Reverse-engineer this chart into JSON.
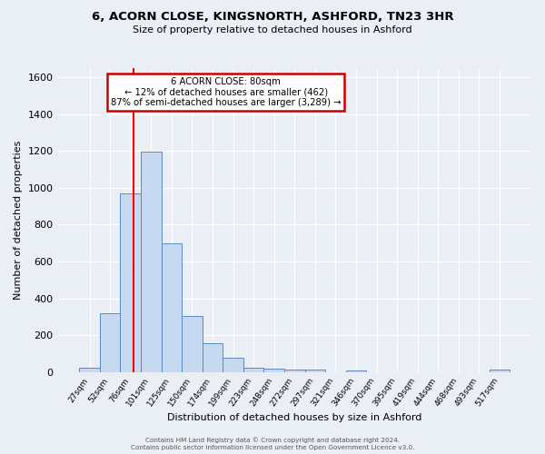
{
  "title_line1": "6, ACORN CLOSE, KINGSNORTH, ASHFORD, TN23 3HR",
  "title_line2": "Size of property relative to detached houses in Ashford",
  "xlabel": "Distribution of detached houses by size in Ashford",
  "ylabel": "Number of detached properties",
  "categories": [
    "27sqm",
    "52sqm",
    "76sqm",
    "101sqm",
    "125sqm",
    "150sqm",
    "174sqm",
    "199sqm",
    "223sqm",
    "248sqm",
    "272sqm",
    "297sqm",
    "321sqm",
    "346sqm",
    "370sqm",
    "395sqm",
    "419sqm",
    "444sqm",
    "468sqm",
    "493sqm",
    "517sqm"
  ],
  "values": [
    25,
    320,
    970,
    1195,
    700,
    305,
    155,
    75,
    25,
    20,
    15,
    15,
    0,
    10,
    0,
    0,
    0,
    0,
    0,
    0,
    15
  ],
  "bar_color": "#c6d9f1",
  "bar_edge_color": "#5b8ac7",
  "annotation_title": "6 ACORN CLOSE: 80sqm",
  "annotation_line1": "← 12% of detached houses are smaller (462)",
  "annotation_line2": "87% of semi-detached houses are larger (3,289) →",
  "annotation_box_color": "#ffffff",
  "annotation_box_edge": "#cc0000",
  "ylim": [
    0,
    1650
  ],
  "yticks": [
    0,
    200,
    400,
    600,
    800,
    1000,
    1200,
    1400,
    1600
  ],
  "footer_line1": "Contains HM Land Registry data © Crown copyright and database right 2024.",
  "footer_line2": "Contains public sector information licensed under the Open Government Licence v3.0.",
  "background_color": "#eaeef5",
  "plot_bg_color": "#eaeef5"
}
